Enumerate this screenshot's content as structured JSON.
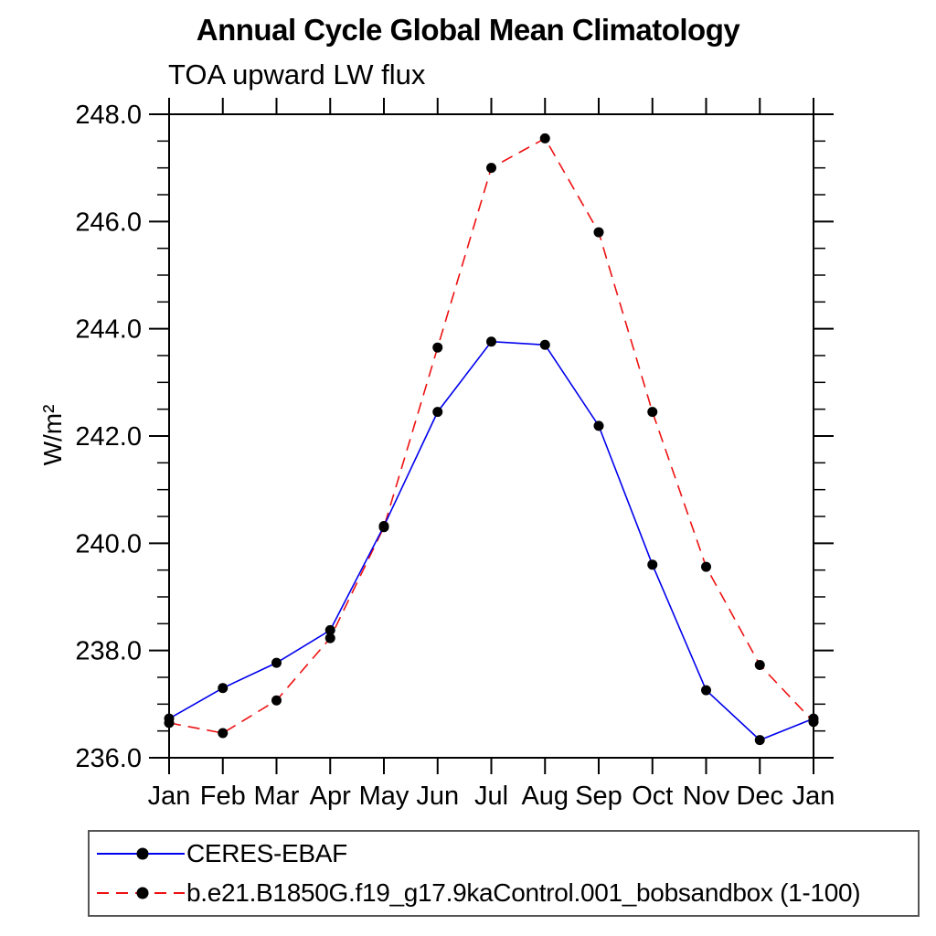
{
  "page": {
    "background": "#ffffff"
  },
  "chart_data": {
    "type": "line",
    "title": "Annual Cycle Global Mean Climatology",
    "subtitle": "TOA upward LW flux",
    "ylabel": "W/m²",
    "xlabel": "",
    "categories": [
      "Jan",
      "Feb",
      "Mar",
      "Apr",
      "May",
      "Jun",
      "Jul",
      "Aug",
      "Sep",
      "Oct",
      "Nov",
      "Dec",
      "Jan"
    ],
    "ylim": [
      236.0,
      248.0
    ],
    "ytick_major_interval": 2.0,
    "ytick_minor_interval": 0.5,
    "ytick_labels": [
      "236.0",
      "238.0",
      "240.0",
      "242.0",
      "244.0",
      "246.0",
      "248.0"
    ],
    "grid": false,
    "legend_position": "bottom-left",
    "axis_color": "#000000",
    "marker_shape": "filled-circle",
    "series": [
      {
        "name": "CERES-EBAF",
        "color": "#0000ee",
        "line_style": "solid",
        "marker_color": "#000000",
        "values": [
          236.73,
          237.3,
          237.77,
          238.38,
          240.32,
          242.45,
          243.76,
          243.7,
          242.19,
          239.6,
          237.26,
          236.33,
          236.73
        ]
      },
      {
        "name": "b.e21.B1850G.f19_g17.9kaControl.001_bobsandbox (1-100)",
        "color": "#ee1111",
        "line_style": "dashed",
        "marker_color": "#000000",
        "values": [
          236.65,
          236.46,
          237.07,
          238.23,
          240.3,
          243.65,
          247.0,
          247.55,
          245.8,
          242.45,
          239.56,
          237.73,
          236.67
        ]
      }
    ]
  }
}
